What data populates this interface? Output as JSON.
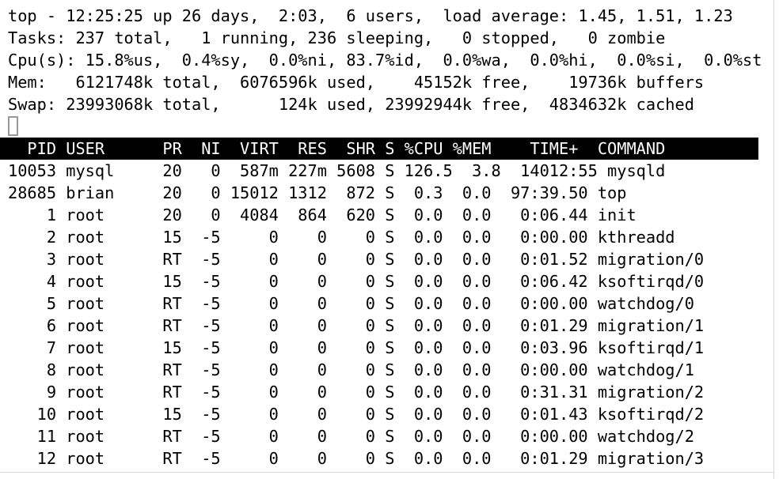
{
  "app": {
    "name": "top"
  },
  "colors": {
    "background": "#ffffff",
    "text": "#000000",
    "header_bg": "#000000",
    "header_fg": "#ffffff",
    "cursor_border": "#999999",
    "frame_line": "#d8d8d8"
  },
  "summary": {
    "lines": [
      "top - 12:25:25 up 26 days,  2:03,  6 users,  load average: 1.45, 1.51, 1.23",
      "Tasks: 237 total,   1 running, 236 sleeping,   0 stopped,   0 zombie",
      "Cpu(s): 15.8%us,  0.4%sy,  0.0%ni, 83.7%id,  0.0%wa,  0.0%hi,  0.0%si,  0.0%st",
      "Mem:   6121748k total,  6076596k used,    45152k free,    19736k buffers",
      "Swap: 23993068k total,      124k used, 23992944k free,  4834632k cached"
    ],
    "uptime": "26 days, 2:03",
    "time": "12:25:25",
    "users": "6",
    "load_average": [
      "1.45",
      "1.51",
      "1.23"
    ]
  },
  "cursor": {
    "visible": true
  },
  "table": {
    "header_text": "  PID USER      PR  NI  VIRT  RES  SHR S %CPU %MEM    TIME+  COMMAND",
    "columns": [
      {
        "key": "pid",
        "label": "PID",
        "width": 5,
        "align": "right"
      },
      {
        "key": "user",
        "label": "USER",
        "width": 8,
        "align": "left"
      },
      {
        "key": "pr",
        "label": "PR",
        "width": 3,
        "align": "right"
      },
      {
        "key": "ni",
        "label": "NI",
        "width": 3,
        "align": "right"
      },
      {
        "key": "virt",
        "label": "VIRT",
        "width": 5,
        "align": "right"
      },
      {
        "key": "res",
        "label": "RES",
        "width": 4,
        "align": "right"
      },
      {
        "key": "shr",
        "label": "SHR",
        "width": 4,
        "align": "right"
      },
      {
        "key": "s",
        "label": "S",
        "width": 1,
        "align": "right"
      },
      {
        "key": "cpu",
        "label": "%CPU",
        "width": 4,
        "align": "right"
      },
      {
        "key": "mem",
        "label": "%MEM",
        "width": 4,
        "align": "right"
      },
      {
        "key": "time",
        "label": "TIME+",
        "width": 9,
        "align": "right"
      },
      {
        "key": "command",
        "label": "COMMAND",
        "width": 0,
        "align": "left"
      }
    ],
    "rows": [
      {
        "pid": "10053",
        "user": "mysql",
        "pr": "20",
        "ni": "0",
        "virt": "587m",
        "res": "227m",
        "shr": "5608",
        "s": "S",
        "cpu": "126.5",
        "mem": "3.8",
        "time": "14012:55",
        "command": "mysqld"
      },
      {
        "pid": "28685",
        "user": "brian",
        "pr": "20",
        "ni": "0",
        "virt": "15012",
        "res": "1312",
        "shr": "872",
        "s": "S",
        "cpu": "0.3",
        "mem": "0.0",
        "time": "97:39.50",
        "command": "top"
      },
      {
        "pid": "1",
        "user": "root",
        "pr": "20",
        "ni": "0",
        "virt": "4084",
        "res": "864",
        "shr": "620",
        "s": "S",
        "cpu": "0.0",
        "mem": "0.0",
        "time": "0:06.44",
        "command": "init"
      },
      {
        "pid": "2",
        "user": "root",
        "pr": "15",
        "ni": "-5",
        "virt": "0",
        "res": "0",
        "shr": "0",
        "s": "S",
        "cpu": "0.0",
        "mem": "0.0",
        "time": "0:00.00",
        "command": "kthreadd"
      },
      {
        "pid": "3",
        "user": "root",
        "pr": "RT",
        "ni": "-5",
        "virt": "0",
        "res": "0",
        "shr": "0",
        "s": "S",
        "cpu": "0.0",
        "mem": "0.0",
        "time": "0:01.52",
        "command": "migration/0"
      },
      {
        "pid": "4",
        "user": "root",
        "pr": "15",
        "ni": "-5",
        "virt": "0",
        "res": "0",
        "shr": "0",
        "s": "S",
        "cpu": "0.0",
        "mem": "0.0",
        "time": "0:06.42",
        "command": "ksoftirqd/0"
      },
      {
        "pid": "5",
        "user": "root",
        "pr": "RT",
        "ni": "-5",
        "virt": "0",
        "res": "0",
        "shr": "0",
        "s": "S",
        "cpu": "0.0",
        "mem": "0.0",
        "time": "0:00.00",
        "command": "watchdog/0"
      },
      {
        "pid": "6",
        "user": "root",
        "pr": "RT",
        "ni": "-5",
        "virt": "0",
        "res": "0",
        "shr": "0",
        "s": "S",
        "cpu": "0.0",
        "mem": "0.0",
        "time": "0:01.29",
        "command": "migration/1"
      },
      {
        "pid": "7",
        "user": "root",
        "pr": "15",
        "ni": "-5",
        "virt": "0",
        "res": "0",
        "shr": "0",
        "s": "S",
        "cpu": "0.0",
        "mem": "0.0",
        "time": "0:03.96",
        "command": "ksoftirqd/1"
      },
      {
        "pid": "8",
        "user": "root",
        "pr": "RT",
        "ni": "-5",
        "virt": "0",
        "res": "0",
        "shr": "0",
        "s": "S",
        "cpu": "0.0",
        "mem": "0.0",
        "time": "0:00.00",
        "command": "watchdog/1"
      },
      {
        "pid": "9",
        "user": "root",
        "pr": "RT",
        "ni": "-5",
        "virt": "0",
        "res": "0",
        "shr": "0",
        "s": "S",
        "cpu": "0.0",
        "mem": "0.0",
        "time": "0:31.31",
        "command": "migration/2"
      },
      {
        "pid": "10",
        "user": "root",
        "pr": "15",
        "ni": "-5",
        "virt": "0",
        "res": "0",
        "shr": "0",
        "s": "S",
        "cpu": "0.0",
        "mem": "0.0",
        "time": "0:01.43",
        "command": "ksoftirqd/2"
      },
      {
        "pid": "11",
        "user": "root",
        "pr": "RT",
        "ni": "-5",
        "virt": "0",
        "res": "0",
        "shr": "0",
        "s": "S",
        "cpu": "0.0",
        "mem": "0.0",
        "time": "0:00.00",
        "command": "watchdog/2"
      },
      {
        "pid": "12",
        "user": "root",
        "pr": "RT",
        "ni": "-5",
        "virt": "0",
        "res": "0",
        "shr": "0",
        "s": "S",
        "cpu": "0.0",
        "mem": "0.0",
        "time": "0:01.29",
        "command": "migration/3"
      }
    ]
  }
}
